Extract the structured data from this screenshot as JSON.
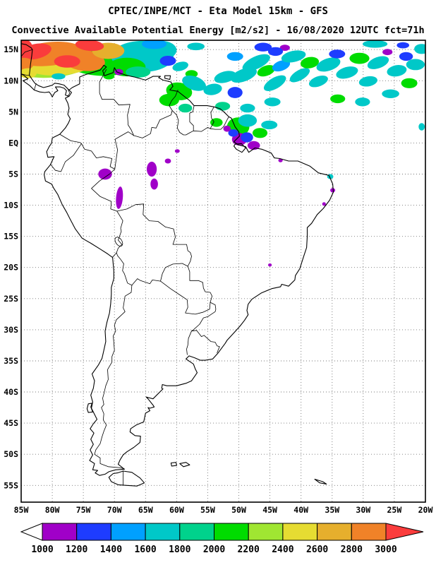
{
  "header": {
    "title_line1": "CPTEC/INPE/MCT -  Eta Model 15km - GFS",
    "title_line2": "Convective Available Potential Energy [m2/s2] - 16/08/2020 12UTC fct=71h"
  },
  "map": {
    "lat_ticks": [
      {
        "label": "15N",
        "deg": 15
      },
      {
        "label": "10N",
        "deg": 10
      },
      {
        "label": "5N",
        "deg": 5
      },
      {
        "label": "EQ",
        "deg": 0
      },
      {
        "label": "5S",
        "deg": -5
      },
      {
        "label": "10S",
        "deg": -10
      },
      {
        "label": "15S",
        "deg": -15
      },
      {
        "label": "20S",
        "deg": -20
      },
      {
        "label": "25S",
        "deg": -25
      },
      {
        "label": "30S",
        "deg": -30
      },
      {
        "label": "35S",
        "deg": -35
      },
      {
        "label": "40S",
        "deg": -40
      },
      {
        "label": "45S",
        "deg": -45
      },
      {
        "label": "50S",
        "deg": -50
      },
      {
        "label": "55S",
        "deg": -55
      }
    ],
    "lon_ticks": [
      {
        "label": "85W",
        "deg": -85
      },
      {
        "label": "80W",
        "deg": -80
      },
      {
        "label": "75W",
        "deg": -75
      },
      {
        "label": "70W",
        "deg": -70
      },
      {
        "label": "65W",
        "deg": -65
      },
      {
        "label": "60W",
        "deg": -60
      },
      {
        "label": "55W",
        "deg": -55
      },
      {
        "label": "50W",
        "deg": -50
      },
      {
        "label": "45W",
        "deg": -45
      },
      {
        "label": "40W",
        "deg": -40
      },
      {
        "label": "35W",
        "deg": -35
      },
      {
        "label": "30W",
        "deg": -30
      },
      {
        "label": "25W",
        "deg": -25
      },
      {
        "label": "20W",
        "deg": -20
      }
    ],
    "bounds": {
      "lon_min": -85,
      "lon_max": -20,
      "lat_min": -57.6,
      "lat_max": 16.5
    }
  },
  "colorbar": {
    "ticks": [
      "1000",
      "1200",
      "1400",
      "1600",
      "1800",
      "2000",
      "2200",
      "2400",
      "2600",
      "2800",
      "3000"
    ],
    "segment_colors": [
      "#a000c8",
      "#1e3cff",
      "#00a0ff",
      "#00c8c8",
      "#00d28c",
      "#00dc00",
      "#a0e632",
      "#e6dc32",
      "#e6af2d",
      "#f08228"
    ],
    "under_color": "#ffffff",
    "over_color": "#fa3c3c"
  },
  "chart_data": {
    "type": "heatmap",
    "title": "Convective Available Potential Energy [m2/s2]",
    "source": "CPTEC/INPE/MCT",
    "model": "Eta Model 15km - GFS",
    "valid": "16/08/2020 12UTC fct=71h",
    "units": "m2/s2",
    "lon_range": [
      -85,
      -20
    ],
    "lat_range": [
      -57.6,
      16.5
    ],
    "levels": [
      1000,
      1200,
      1400,
      1600,
      1800,
      2000,
      2200,
      2400,
      2600,
      2800,
      3000
    ],
    "palette": {
      "purple": "#a000c8",
      "blue": "#1e3cff",
      "lblue": "#00a0ff",
      "cyan": "#00c8c8",
      "aqua": "#00d28c",
      "green": "#00dc00",
      "ygreen": "#a0e632",
      "yellow": "#e6dc32",
      "dyellow": "#e6af2d",
      "orange": "#f08228",
      "red": "#fa3c3c"
    },
    "palette_levels": {
      "purple": "1000-1200",
      "blue": "1200-1400",
      "lblue": "1400-1600",
      "cyan": "1600-1800",
      "aqua": "1800-2000",
      "green": "2000-2200",
      "ygreen": "2200-2400",
      "yellow": "2400-2600",
      "dyellow": "2600-2800",
      "orange": "2800-3000",
      "red": ">3000"
    },
    "regions_format": [
      "lon",
      "lat",
      "rx_deg",
      "ry_deg",
      "rot_deg",
      "color_key"
    ],
    "regions": [
      [
        -80.3,
        13.2,
        7.0,
        2.7,
        -4,
        "ygreen"
      ],
      [
        -72.5,
        13.4,
        6.0,
        2.6,
        4,
        "green"
      ],
      [
        -65.5,
        13.9,
        5.0,
        2.5,
        0,
        "cyan"
      ],
      [
        -78.5,
        12.3,
        5.0,
        1.4,
        -5,
        "yellow"
      ],
      [
        -80.5,
        14.3,
        5.5,
        1.9,
        -6,
        "orange"
      ],
      [
        -75.0,
        13.3,
        3.5,
        1.7,
        8,
        "orange"
      ],
      [
        -71.0,
        14.8,
        2.6,
        1.3,
        0,
        "dyellow"
      ],
      [
        -85.0,
        15.4,
        1.8,
        1.4,
        0,
        "red"
      ],
      [
        -82.7,
        14.7,
        2.6,
        1.2,
        -12,
        "red"
      ],
      [
        -77.6,
        13.1,
        2.1,
        1.0,
        0,
        "red"
      ],
      [
        -74.0,
        15.7,
        2.3,
        0.9,
        5,
        "red"
      ],
      [
        -84.6,
        12.7,
        1.6,
        1.0,
        0,
        "orange"
      ],
      [
        -83.9,
        11.2,
        1.4,
        0.8,
        0,
        "yellow"
      ],
      [
        -68.0,
        12.2,
        3.0,
        1.5,
        0,
        "green"
      ],
      [
        -66.2,
        11.4,
        2.0,
        0.9,
        0,
        "aqua"
      ],
      [
        -62.4,
        14.9,
        2.4,
        1.5,
        0,
        "cyan"
      ],
      [
        -63.6,
        15.9,
        2.0,
        0.8,
        0,
        "lblue"
      ],
      [
        -61.4,
        13.2,
        1.3,
        0.8,
        0,
        "blue"
      ],
      [
        -69.3,
        11.4,
        0.7,
        0.5,
        0,
        "purple"
      ],
      [
        -79.0,
        10.7,
        1.1,
        0.5,
        0,
        "cyan"
      ],
      [
        -70.9,
        10.7,
        0.9,
        0.5,
        0,
        "green"
      ],
      [
        -59.4,
        12.3,
        1.3,
        0.7,
        -15,
        "cyan"
      ],
      [
        -57.6,
        11.1,
        1.0,
        0.6,
        0,
        "green"
      ],
      [
        -59.6,
        8.3,
        2.1,
        1.4,
        10,
        "green"
      ],
      [
        -57.2,
        9.6,
        2.0,
        1.1,
        20,
        "cyan"
      ],
      [
        -61.2,
        6.9,
        1.6,
        1.0,
        0,
        "green"
      ],
      [
        -58.6,
        5.6,
        1.1,
        0.7,
        0,
        "aqua"
      ],
      [
        -54.2,
        8.6,
        1.5,
        0.9,
        -10,
        "cyan"
      ],
      [
        -52.2,
        10.6,
        1.8,
        0.9,
        -15,
        "cyan"
      ],
      [
        -50.6,
        8.1,
        1.2,
        0.9,
        0,
        "blue"
      ],
      [
        -49.2,
        10.9,
        2.2,
        1.0,
        -20,
        "cyan"
      ],
      [
        -47.2,
        12.9,
        2.4,
        1.0,
        -25,
        "cyan"
      ],
      [
        -45.6,
        11.6,
        1.5,
        0.8,
        -20,
        "green"
      ],
      [
        -44.2,
        9.6,
        2.0,
        0.9,
        -30,
        "cyan"
      ],
      [
        -43.2,
        12.4,
        1.5,
        0.8,
        -20,
        "lblue"
      ],
      [
        -41.2,
        13.9,
        2.0,
        0.9,
        -12,
        "cyan"
      ],
      [
        -40.2,
        10.9,
        1.8,
        0.8,
        -30,
        "cyan"
      ],
      [
        -38.6,
        12.9,
        1.5,
        0.9,
        -10,
        "green"
      ],
      [
        -37.2,
        9.9,
        1.6,
        0.8,
        -20,
        "cyan"
      ],
      [
        -35.6,
        12.6,
        2.0,
        1.0,
        -18,
        "cyan"
      ],
      [
        -34.2,
        14.3,
        1.3,
        0.7,
        0,
        "blue"
      ],
      [
        -32.6,
        11.3,
        1.8,
        0.9,
        -15,
        "cyan"
      ],
      [
        -30.6,
        13.6,
        1.6,
        0.9,
        0,
        "green"
      ],
      [
        -29.2,
        9.9,
        1.5,
        0.8,
        -10,
        "cyan"
      ],
      [
        -27.6,
        12.9,
        1.8,
        0.9,
        -20,
        "cyan"
      ],
      [
        -26.1,
        14.6,
        0.8,
        0.5,
        0,
        "purple"
      ],
      [
        -24.6,
        11.6,
        1.6,
        0.9,
        -10,
        "cyan"
      ],
      [
        -23.1,
        13.9,
        1.1,
        0.7,
        0,
        "blue"
      ],
      [
        -21.6,
        12.6,
        1.5,
        0.9,
        0,
        "cyan"
      ],
      [
        -20.6,
        15.1,
        1.2,
        0.8,
        0,
        "cyan"
      ],
      [
        -22.6,
        9.6,
        1.3,
        0.8,
        0,
        "green"
      ],
      [
        -25.6,
        7.9,
        1.4,
        0.7,
        0,
        "cyan"
      ],
      [
        -30.1,
        6.6,
        1.2,
        0.7,
        0,
        "cyan"
      ],
      [
        -34.1,
        7.1,
        1.2,
        0.7,
        0,
        "green"
      ],
      [
        -44.6,
        6.6,
        1.3,
        0.7,
        0,
        "cyan"
      ],
      [
        -48.6,
        5.6,
        1.2,
        0.7,
        0,
        "cyan"
      ],
      [
        -52.6,
        5.9,
        1.2,
        0.7,
        0,
        "aqua"
      ],
      [
        -28.1,
        15.9,
        2.0,
        0.6,
        0,
        "cyan"
      ],
      [
        -23.6,
        15.7,
        1.0,
        0.5,
        0,
        "blue"
      ],
      [
        -46.1,
        15.4,
        1.4,
        0.7,
        0,
        "blue"
      ],
      [
        -50.6,
        13.9,
        1.3,
        0.7,
        0,
        "lblue"
      ],
      [
        -42.6,
        15.3,
        0.8,
        0.5,
        0,
        "purple"
      ],
      [
        -44.1,
        14.7,
        1.2,
        0.7,
        0,
        "blue"
      ],
      [
        -56.9,
        15.5,
        1.4,
        0.6,
        0,
        "cyan"
      ],
      [
        -50.1,
        2.6,
        1.8,
        1.5,
        0,
        "green"
      ],
      [
        -48.6,
        3.6,
        1.5,
        1.0,
        0,
        "cyan"
      ],
      [
        -49.9,
        0.6,
        1.2,
        1.0,
        0,
        "purple"
      ],
      [
        -48.7,
        0.9,
        1.0,
        0.8,
        0,
        "blue"
      ],
      [
        -47.6,
        -0.4,
        1.0,
        0.7,
        0,
        "purple"
      ],
      [
        -50.9,
        1.6,
        0.8,
        0.6,
        0,
        "blue"
      ],
      [
        -46.6,
        1.6,
        1.2,
        0.8,
        0,
        "green"
      ],
      [
        -45.1,
        2.9,
        1.3,
        0.7,
        0,
        "cyan"
      ],
      [
        -51.9,
        2.3,
        0.6,
        0.5,
        0,
        "purple"
      ],
      [
        -53.6,
        3.3,
        1.0,
        0.7,
        0,
        "green"
      ],
      [
        -71.5,
        -5.0,
        1.1,
        0.9,
        0,
        "purple"
      ],
      [
        -69.2,
        -8.8,
        0.55,
        1.8,
        5,
        "purple"
      ],
      [
        -64.0,
        -4.2,
        0.8,
        1.2,
        0,
        "purple"
      ],
      [
        -63.6,
        -6.6,
        0.6,
        0.9,
        0,
        "purple"
      ],
      [
        -61.4,
        -2.9,
        0.5,
        0.4,
        0,
        "purple"
      ],
      [
        -59.9,
        -1.3,
        0.4,
        0.3,
        0,
        "purple"
      ],
      [
        -35.3,
        -5.4,
        0.5,
        0.4,
        0,
        "cyan"
      ],
      [
        -34.9,
        -7.6,
        0.4,
        0.35,
        0,
        "purple"
      ],
      [
        -43.3,
        -2.8,
        0.35,
        0.3,
        0,
        "purple"
      ],
      [
        -36.3,
        -9.8,
        0.3,
        0.3,
        0,
        "purple"
      ],
      [
        -45.0,
        -19.6,
        0.3,
        0.25,
        0,
        "purple"
      ],
      [
        -20.6,
        2.6,
        0.5,
        0.6,
        0,
        "cyan"
      ]
    ]
  }
}
